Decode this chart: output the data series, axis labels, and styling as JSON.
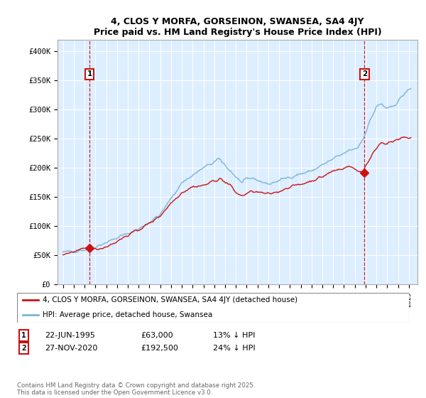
{
  "title": "4, CLOS Y MORFA, GORSEINON, SWANSEA, SA4 4JY",
  "subtitle": "Price paid vs. HM Land Registry's House Price Index (HPI)",
  "ylim": [
    0,
    420000
  ],
  "yticks": [
    0,
    50000,
    100000,
    150000,
    200000,
    250000,
    300000,
    350000,
    400000
  ],
  "ytick_labels": [
    "£0",
    "£50K",
    "£100K",
    "£150K",
    "£200K",
    "£250K",
    "£300K",
    "£350K",
    "£400K"
  ],
  "xlim_start": 1992.5,
  "xlim_end": 2025.8,
  "hpi_color": "#7ab4d8",
  "price_color": "#cc1111",
  "marker1_date": 1995.47,
  "marker1_price": 63000,
  "marker2_date": 2020.9,
  "marker2_price": 192500,
  "hatch_end": 1995.47,
  "legend_label1": "4, CLOS Y MORFA, GORSEINON, SWANSEA, SA4 4JY (detached house)",
  "legend_label2": "HPI: Average price, detached house, Swansea",
  "annotation1_text": "22-JUN-1995",
  "annotation1_price": "£63,000",
  "annotation1_pct": "13% ↓ HPI",
  "annotation2_text": "27-NOV-2020",
  "annotation2_price": "£192,500",
  "annotation2_pct": "24% ↓ HPI",
  "footer": "Contains HM Land Registry data © Crown copyright and database right 2025.\nThis data is licensed under the Open Government Licence v3.0.",
  "chart_bg": "#ddeeff",
  "fig_bg": "#ffffff"
}
